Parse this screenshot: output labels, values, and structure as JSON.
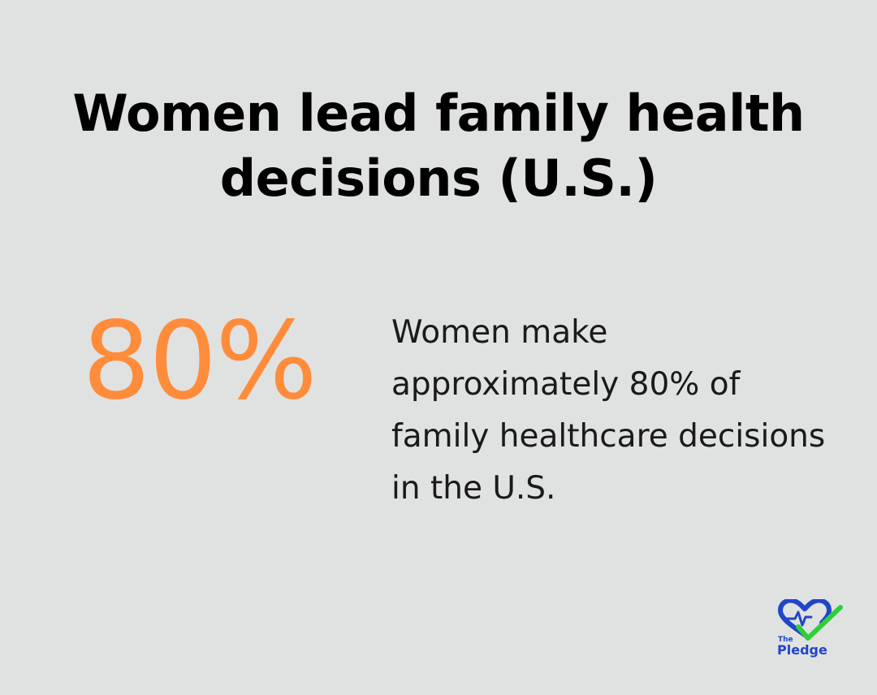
{
  "title": "Women lead family health decisions (U.S.)",
  "stat": {
    "value": "80%",
    "description": "Women make approximately 80% of family healthcare decisions in the U.S."
  },
  "logo": {
    "small_text": "The",
    "name": "Pledge",
    "icon": "heart-check-icon"
  },
  "colors": {
    "background": "#e0e1e1",
    "accent": "#ff8c3a",
    "logo_blue": "#1f47c8",
    "logo_green": "#2fce3a"
  }
}
